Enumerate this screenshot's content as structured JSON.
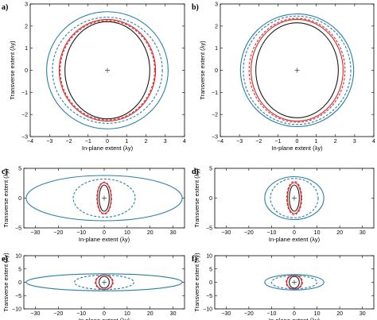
{
  "colors": {
    "black": "#1a1a1a",
    "red": "#d62a2a",
    "teal": "#2b7fa6"
  },
  "chart_data": [
    {
      "panel_label": "a)",
      "type": "line",
      "xlabel": "In-plane extent (λy)",
      "ylabel": "Transverse extent (λy)",
      "xlim": [
        -4,
        4
      ],
      "ylim": [
        -3,
        3
      ],
      "xticks": [
        -4,
        -3,
        -2,
        -1,
        0,
        1,
        2,
        3,
        4
      ],
      "yticks": [
        -3,
        -2,
        -1,
        0,
        1,
        2,
        3
      ],
      "series": [
        {
          "color": "black",
          "dash": false,
          "rx": 2.2,
          "ry": 2.2
        },
        {
          "color": "red",
          "dash": false,
          "rx": 2.5,
          "ry": 2.3
        },
        {
          "color": "red",
          "dash": true,
          "rx": 2.45,
          "ry": 2.25
        },
        {
          "color": "teal",
          "dash": true,
          "rx": 2.85,
          "ry": 2.4
        },
        {
          "color": "teal",
          "dash": false,
          "rx": 3.15,
          "ry": 2.65
        }
      ],
      "marker": [
        0,
        0
      ]
    },
    {
      "panel_label": "b)",
      "type": "line",
      "xlabel": "In-plane extent (λy)",
      "ylabel": "Transverse extent (λy)",
      "xlim": [
        -4,
        4
      ],
      "ylim": [
        -3,
        3
      ],
      "xticks": [
        -4,
        -3,
        -2,
        -1,
        0,
        1,
        2,
        3,
        4
      ],
      "yticks": [
        -3,
        -2,
        -1,
        0,
        1,
        2,
        3
      ],
      "series": [
        {
          "color": "black",
          "dash": false,
          "rx": 2.15,
          "ry": 2.15
        },
        {
          "color": "red",
          "dash": false,
          "rx": 2.4,
          "ry": 2.3
        },
        {
          "color": "red",
          "dash": true,
          "rx": 2.5,
          "ry": 2.35
        },
        {
          "color": "teal",
          "dash": true,
          "rx": 2.8,
          "ry": 2.45
        },
        {
          "color": "teal",
          "dash": false,
          "rx": 2.95,
          "ry": 2.55
        }
      ],
      "marker": [
        0,
        0
      ]
    },
    {
      "panel_label": "c)",
      "type": "line",
      "xlabel": "In-plane extent (λy)",
      "ylabel": "Transverse extent (λy)",
      "xlim": [
        -35,
        35
      ],
      "ylim": [
        -5,
        5
      ],
      "xticks": [
        -30,
        -20,
        -10,
        0,
        10,
        20,
        30
      ],
      "yticks": [
        -5,
        0,
        5
      ],
      "series": [
        {
          "color": "black",
          "dash": false,
          "rx": 2.2,
          "ry": 2.2
        },
        {
          "color": "red",
          "dash": false,
          "rx": 3.0,
          "ry": 2.6
        },
        {
          "color": "red",
          "dash": true,
          "rx": 3.2,
          "ry": 2.7
        },
        {
          "color": "teal",
          "dash": true,
          "rx": 13.5,
          "ry": 3.2
        },
        {
          "color": "teal",
          "dash": false,
          "rx": 34.0,
          "ry": 3.8
        }
      ],
      "marker": [
        0,
        0
      ]
    },
    {
      "panel_label": "d)",
      "type": "line",
      "xlabel": "In-plane extent (λy)",
      "ylabel": "Transverse extent (λy)",
      "xlim": [
        -35,
        35
      ],
      "ylim": [
        -5,
        5
      ],
      "xticks": [
        -30,
        -20,
        -10,
        0,
        10,
        20,
        30
      ],
      "yticks": [
        -5,
        0,
        5
      ],
      "series": [
        {
          "color": "black",
          "dash": false,
          "rx": 2.2,
          "ry": 2.2
        },
        {
          "color": "red",
          "dash": false,
          "rx": 3.0,
          "ry": 2.6
        },
        {
          "color": "red",
          "dash": true,
          "rx": 3.3,
          "ry": 2.8
        },
        {
          "color": "teal",
          "dash": true,
          "rx": 10.5,
          "ry": 3.3
        },
        {
          "color": "teal",
          "dash": false,
          "rx": 13.0,
          "ry": 3.6
        }
      ],
      "marker": [
        0,
        0
      ]
    },
    {
      "panel_label": "e)",
      "type": "line",
      "xlabel": "In-plane extent (λy)",
      "ylabel": "Transverse extent (λy)",
      "xlim": [
        -35,
        35
      ],
      "ylim": [
        -10,
        10
      ],
      "xticks": [
        -30,
        -20,
        -10,
        0,
        10,
        20,
        30
      ],
      "yticks": [
        -10,
        -5,
        0,
        5,
        10
      ],
      "series": [
        {
          "color": "black",
          "dash": false,
          "rx": 2.2,
          "ry": 2.2
        },
        {
          "color": "red",
          "dash": false,
          "rx": 3.6,
          "ry": 2.7
        },
        {
          "color": "red",
          "dash": true,
          "rx": 3.9,
          "ry": 2.8
        },
        {
          "color": "teal",
          "dash": true,
          "rx": 13.0,
          "ry": 2.7
        },
        {
          "color": "teal",
          "dash": false,
          "rx": 34.0,
          "ry": 3.2
        }
      ],
      "marker": [
        0,
        0
      ]
    },
    {
      "panel_label": "f)",
      "type": "line",
      "xlabel": "In-plane extent (λy)",
      "ylabel": "Transverse extent (λy)",
      "xlim": [
        -35,
        35
      ],
      "ylim": [
        -10,
        10
      ],
      "xticks": [
        -30,
        -20,
        -10,
        0,
        10,
        20,
        30
      ],
      "yticks": [
        -10,
        -5,
        0,
        5,
        10
      ],
      "series": [
        {
          "color": "black",
          "dash": false,
          "rx": 2.2,
          "ry": 2.2
        },
        {
          "color": "red",
          "dash": false,
          "rx": 3.3,
          "ry": 2.6
        },
        {
          "color": "red",
          "dash": true,
          "rx": 3.6,
          "ry": 2.7
        },
        {
          "color": "teal",
          "dash": true,
          "rx": 10.0,
          "ry": 2.5
        },
        {
          "color": "teal",
          "dash": false,
          "rx": 13.0,
          "ry": 2.9
        }
      ],
      "marker": [
        0,
        0
      ]
    }
  ]
}
